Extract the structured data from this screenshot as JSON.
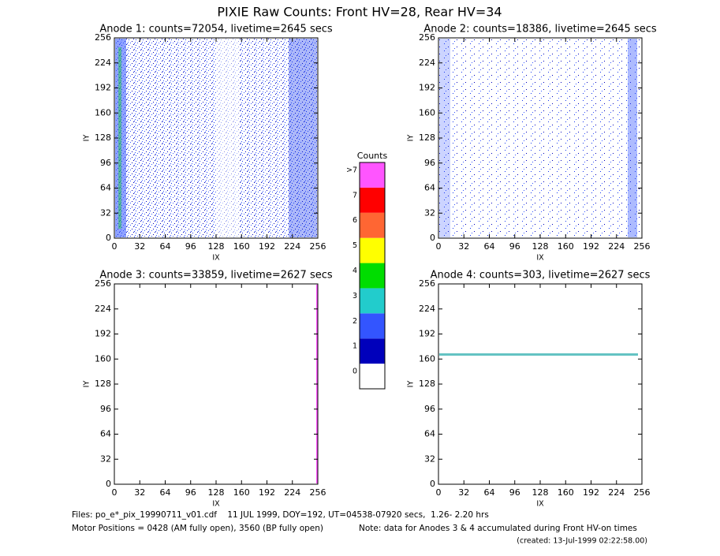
{
  "title": "PIXIE Raw Counts:  Front HV=28, Rear HV=34",
  "chart_data": [
    {
      "type": "heatmap",
      "title": "Anode 1: counts=72054, livetime=2645 secs",
      "x_label": "IX",
      "y_label": "IY",
      "xlim": [
        0,
        256
      ],
      "ylim": [
        0,
        256
      ],
      "xticks": [
        0,
        32,
        64,
        96,
        128,
        160,
        192,
        224,
        256
      ],
      "yticks": [
        0,
        32,
        64,
        96,
        128,
        160,
        192,
        224,
        256
      ]
    },
    {
      "type": "heatmap",
      "title": "Anode 2: counts=18386, livetime=2645 secs",
      "x_label": "IX",
      "y_label": "IY",
      "xlim": [
        0,
        256
      ],
      "ylim": [
        0,
        256
      ],
      "xticks": [
        0,
        32,
        64,
        96,
        128,
        160,
        192,
        224,
        256
      ],
      "yticks": [
        0,
        32,
        64,
        96,
        128,
        160,
        192,
        224,
        256
      ]
    },
    {
      "type": "heatmap",
      "title": "Anode 3: counts=33859, livetime=2627 secs",
      "x_label": "IX",
      "y_label": "IY",
      "xlim": [
        0,
        256
      ],
      "ylim": [
        0,
        256
      ],
      "xticks": [
        0,
        32,
        64,
        96,
        128,
        160,
        192,
        224,
        256
      ],
      "yticks": [
        0,
        32,
        64,
        96,
        128,
        160,
        192,
        224,
        256
      ]
    },
    {
      "type": "heatmap",
      "title": "Anode 4: counts=303, livetime=2627 secs",
      "x_label": "IX",
      "y_label": "IY",
      "xlim": [
        0,
        256
      ],
      "ylim": [
        0,
        256
      ],
      "xticks": [
        0,
        32,
        64,
        96,
        128,
        160,
        192,
        224,
        256
      ],
      "yticks": [
        0,
        32,
        64,
        96,
        128,
        160,
        192,
        224,
        256
      ]
    }
  ],
  "colorbar": {
    "title": "Counts",
    "ticks": [
      0,
      1,
      2,
      3,
      4,
      5,
      6,
      7,
      {
        "value": 8,
        "label": ">7"
      }
    ],
    "colors": [
      "#ffffff",
      "#0000bb",
      "#3355ff",
      "#22cccc",
      "#00dd00",
      "#ffff00",
      "#ff6633",
      "#ff0000",
      "#ff55ff"
    ]
  },
  "footer": {
    "files": "Files: po_e*_pix_19990711_v01.cdf    11 JUL 1999, DOY=192, UT=04538-07920 secs,  1.26- 2.20 hrs",
    "motor": "Motor Positions = 0428 (AM fully open), 3560 (BP fully open)",
    "note": "Note: data for Anodes 3 & 4 accumulated during Front HV-on times",
    "created": "(created: 13-Jul-1999 02:22:58.00)"
  }
}
